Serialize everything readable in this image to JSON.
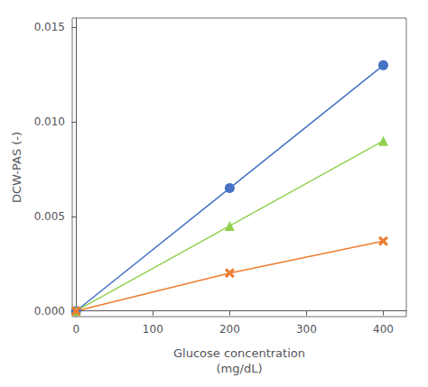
{
  "chart_data": {
    "type": "line",
    "xlabel": "Glucose concentration\n(mg/dL)",
    "ylabel": "DCW-PAS (-)",
    "x": [
      0,
      200,
      400
    ],
    "series": [
      {
        "color": "#4472C4",
        "marker": "circle",
        "values": [
          0.0,
          0.0065,
          0.013
        ]
      },
      {
        "color": "#92D050",
        "marker": "triangle",
        "values": [
          0.0,
          0.0045,
          0.009
        ]
      },
      {
        "color": "#ED7D31",
        "marker": "x",
        "values": [
          0.0,
          0.002,
          0.0037
        ]
      }
    ],
    "xlim": [
      -5,
      430
    ],
    "xticks": [
      0,
      100,
      200,
      300,
      400
    ],
    "ylim": [
      -0.0003,
      0.0155
    ],
    "yticks": [
      {
        "value": 0,
        "label": "0.000"
      },
      0.005,
      {
        "value": 0.01,
        "label": "0.010"
      },
      0.015
    ],
    "grid": false
  }
}
